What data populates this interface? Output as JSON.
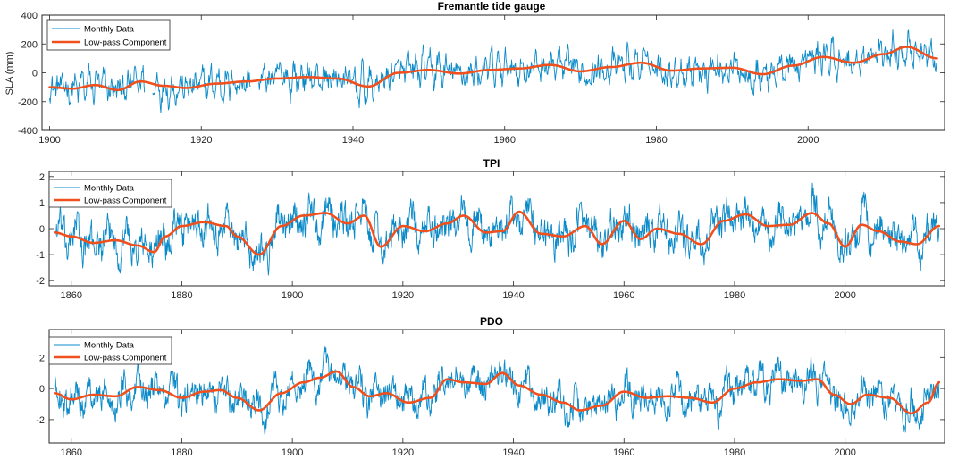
{
  "colors": {
    "monthly": "#0a8ac8",
    "lowpass": "#f0501e",
    "axis": "#262626"
  },
  "chart_data": [
    {
      "type": "line",
      "title": "Fremantle tide gauge",
      "xlabel": "",
      "ylabel": "SLA (mm)",
      "xlim": [
        1899,
        2018
      ],
      "ylim": [
        -400,
        400
      ],
      "xticks": [
        1900,
        1920,
        1940,
        1960,
        1980,
        2000
      ],
      "yticks": [
        -400,
        -200,
        0,
        200,
        400
      ],
      "legend": {
        "position": "top-left",
        "entries": [
          "Monthly Data",
          "Low-pass Component"
        ]
      },
      "monthly_range": {
        "start": 1900,
        "end": 2017,
        "amplitude": 85,
        "noise": 80
      },
      "gaps": [
        [
          1912.5,
          1913.5
        ],
        [
          1926.5,
          1927.5
        ]
      ],
      "series": [
        {
          "name": "Monthly Data",
          "style": "thin"
        },
        {
          "name": "Low-pass Component",
          "style": "thick",
          "x": [
            1900,
            1903,
            1906,
            1909,
            1912,
            1915,
            1918,
            1922,
            1926,
            1930,
            1934,
            1938,
            1942,
            1946,
            1950,
            1954,
            1958,
            1962,
            1966,
            1970,
            1974,
            1978,
            1982,
            1986,
            1990,
            1994,
            1998,
            2002,
            2006,
            2010,
            2013,
            2017
          ],
          "y": [
            -100,
            -110,
            -85,
            -120,
            -60,
            -90,
            -105,
            -75,
            -60,
            -40,
            -30,
            -40,
            -95,
            0,
            20,
            -5,
            20,
            30,
            55,
            10,
            40,
            70,
            15,
            30,
            35,
            -10,
            50,
            110,
            70,
            130,
            180,
            100
          ]
        }
      ]
    },
    {
      "type": "line",
      "title": "TPI",
      "xlabel": "",
      "ylabel": "",
      "xlim": [
        1856,
        2018
      ],
      "ylim": [
        -2.2,
        2.2
      ],
      "xticks": [
        1860,
        1880,
        1900,
        1920,
        1940,
        1960,
        1980,
        2000
      ],
      "yticks": [
        -2,
        -1,
        0,
        1,
        2
      ],
      "legend": {
        "position": "top-left",
        "entries": [
          "Monthly Data",
          "Low-pass Component"
        ]
      },
      "monthly_range": {
        "start": 1857,
        "end": 2017,
        "amplitude": 0.6,
        "noise": 0.5
      },
      "gaps": [],
      "series": [
        {
          "name": "Monthly Data",
          "style": "thin"
        },
        {
          "name": "Low-pass Component",
          "style": "thick",
          "x": [
            1857,
            1860,
            1864,
            1868,
            1872,
            1875,
            1877,
            1880,
            1884,
            1888,
            1890,
            1894,
            1898,
            1902,
            1906,
            1910,
            1913,
            1916,
            1920,
            1924,
            1928,
            1931,
            1935,
            1938,
            1941,
            1945,
            1949,
            1953,
            1956,
            1960,
            1963,
            1966,
            1970,
            1974,
            1978,
            1982,
            1986,
            1990,
            1994,
            1997,
            2000,
            2003,
            2006,
            2010,
            2013,
            2017
          ],
          "y": [
            -0.15,
            -0.3,
            -0.55,
            -0.45,
            -0.65,
            -0.9,
            -0.3,
            0.1,
            0.25,
            0.1,
            -0.3,
            -1.0,
            0.1,
            0.5,
            0.6,
            0.2,
            0.5,
            -0.7,
            0.1,
            -0.1,
            0.2,
            0.5,
            -0.15,
            -0.1,
            0.65,
            -0.2,
            -0.3,
            0.1,
            -0.6,
            0.3,
            -0.4,
            0.0,
            -0.2,
            -0.6,
            0.3,
            0.55,
            0.1,
            0.15,
            0.6,
            0.2,
            -0.7,
            0.15,
            -0.1,
            -0.5,
            -0.6,
            0.1
          ]
        }
      ]
    },
    {
      "type": "line",
      "title": "PDO",
      "xlabel": "",
      "ylabel": "",
      "xlim": [
        1856,
        2018
      ],
      "ylim": [
        -3.5,
        3.8
      ],
      "xticks": [
        1860,
        1880,
        1900,
        1920,
        1940,
        1960,
        1980,
        2000
      ],
      "yticks": [
        -2,
        0,
        2
      ],
      "legend": {
        "position": "top-left",
        "entries": [
          "Monthly Data",
          "Low-pass Component"
        ]
      },
      "monthly_range": {
        "start": 1857,
        "end": 2017,
        "amplitude": 0.9,
        "noise": 0.75
      },
      "gaps": [],
      "series": [
        {
          "name": "Monthly Data",
          "style": "thin"
        },
        {
          "name": "Low-pass Component",
          "style": "thick",
          "x": [
            1857,
            1860,
            1864,
            1868,
            1872,
            1876,
            1880,
            1884,
            1887,
            1890,
            1894,
            1898,
            1902,
            1905,
            1908,
            1911,
            1914,
            1917,
            1921,
            1925,
            1928,
            1931,
            1935,
            1938,
            1941,
            1945,
            1949,
            1952,
            1956,
            1960,
            1964,
            1968,
            1972,
            1976,
            1980,
            1984,
            1988,
            1992,
            1995,
            1998,
            2001,
            2004,
            2008,
            2012,
            2015,
            2017
          ],
          "y": [
            -0.3,
            -0.7,
            -0.4,
            -0.5,
            0.1,
            -0.1,
            -0.6,
            -0.2,
            -0.1,
            -0.6,
            -1.4,
            -0.3,
            0.4,
            0.7,
            1.1,
            0.1,
            -0.5,
            -0.3,
            -0.9,
            -0.6,
            0.6,
            0.4,
            0.3,
            1.0,
            0.2,
            -0.4,
            -0.9,
            -1.4,
            -1.1,
            -0.2,
            -0.6,
            -0.5,
            -0.6,
            -0.9,
            0.0,
            0.4,
            0.6,
            0.5,
            0.6,
            -0.4,
            -1.0,
            -0.4,
            -0.6,
            -1.6,
            -0.9,
            0.4
          ]
        }
      ]
    }
  ]
}
